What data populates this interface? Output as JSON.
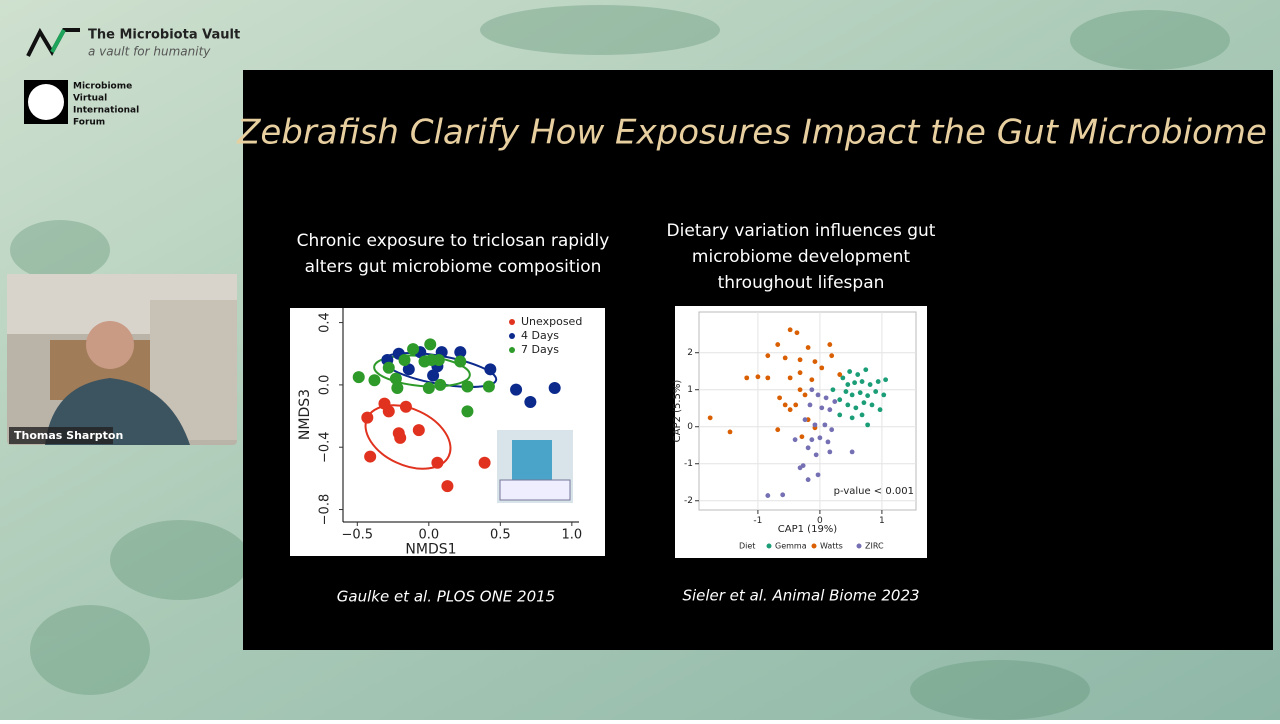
{
  "branding": {
    "name": "The Microbiota Vault",
    "tagline": "a vault for humanity",
    "forum": [
      "Microbiome",
      "Virtual",
      "International",
      "Forum"
    ]
  },
  "speaker": {
    "name": "Thomas Sharpton"
  },
  "slide": {
    "title": "Zebrafish Clarify How Exposures Impact the Gut Microbiome",
    "panels": [
      {
        "caption": [
          "Chronic exposure to triclosan rapidly",
          "alters gut microbiome composition"
        ],
        "citation": "Gaulke et al. PLOS ONE 2015"
      },
      {
        "caption": [
          "Dietary variation influences gut",
          "microbiome development",
          "throughout lifespan"
        ],
        "citation": "Sieler et al. Animal Biome 2023"
      }
    ]
  },
  "chart_data": [
    {
      "type": "scatter",
      "xlabel": "NMDS1",
      "ylabel": "NMDS3",
      "xlim": [
        -0.6,
        1.05
      ],
      "ylim": [
        -0.88,
        0.5
      ],
      "xticks": [
        {
          "value": -0.5,
          "label": "−0.5"
        },
        {
          "value": 0,
          "label": "0.0"
        },
        {
          "value": 0.5,
          "label": "0.5"
        },
        {
          "value": 1,
          "label": "1.0"
        }
      ],
      "yticks": [
        {
          "value": 0.4,
          "label": "0.4"
        },
        {
          "value": 0,
          "label": "0.0"
        },
        {
          "value": -0.4,
          "label": "−0.4"
        },
        {
          "value": -0.8,
          "label": "−0.8"
        }
      ],
      "grid": false,
      "legend": "top-right",
      "series": [
        {
          "name": "Unexposed",
          "color": "#e0321e",
          "x": [
            -0.31,
            -0.16,
            -0.28,
            -0.43,
            -0.07,
            -0.21,
            -0.2,
            -0.41,
            0.06,
            0.39,
            0.13
          ],
          "y": [
            -0.12,
            -0.14,
            -0.17,
            -0.21,
            -0.29,
            -0.31,
            -0.34,
            -0.46,
            -0.5,
            -0.5,
            -0.65
          ]
        },
        {
          "name": "4 Days",
          "color": "#0b2a8c",
          "x": [
            -0.29,
            -0.21,
            -0.06,
            0.09,
            0.22,
            -0.14,
            0.06,
            0.03,
            0.43,
            0.61,
            0.71,
            0.88
          ],
          "y": [
            0.16,
            0.2,
            0.21,
            0.21,
            0.21,
            0.1,
            0.12,
            0.06,
            0.1,
            -0.03,
            -0.11,
            -0.02
          ]
        },
        {
          "name": "7 Days",
          "color": "#2e9a2a",
          "x": [
            -0.49,
            -0.38,
            -0.28,
            -0.17,
            0.01,
            -0.11,
            0.02,
            -0.03,
            0.07,
            0.22,
            -0.23,
            -0.22,
            0,
            0.08,
            0.27,
            0.42,
            0.27
          ],
          "y": [
            0.05,
            0.03,
            0.11,
            0.16,
            0.26,
            0.23,
            0.16,
            0.15,
            0.16,
            0.15,
            0.04,
            -0.02,
            -0.02,
            0,
            -0.01,
            -0.01,
            -0.17
          ]
        }
      ]
    },
    {
      "type": "scatter",
      "xlabel": "CAP1 (19%)",
      "ylabel": "CAP2 (5.5%)",
      "xlim": [
        -1.95,
        1.55
      ],
      "ylim": [
        -2.25,
        3.1
      ],
      "xticks": [
        -1,
        0,
        1
      ],
      "yticks": [
        -2,
        -1,
        0,
        1,
        2
      ],
      "grid": true,
      "legend": "bottom",
      "legend_title": "Diet",
      "annotation": "p-value < 0.001",
      "series": [
        {
          "name": "Gemma",
          "color": "#1b9e77",
          "x": [
            0.37,
            0.48,
            0.61,
            0.74,
            0.45,
            0.56,
            0.68,
            0.81,
            0.94,
            0.42,
            0.52,
            0.65,
            0.77,
            0.9,
            1.03,
            1.06,
            0.32,
            0.45,
            0.58,
            0.71,
            0.84,
            0.97,
            0.68,
            0.52,
            0.32,
            0.77,
            0.21
          ],
          "y": [
            1.32,
            1.49,
            1.41,
            1.54,
            1.14,
            1.19,
            1.22,
            1.14,
            1.22,
            0.95,
            0.86,
            0.92,
            0.84,
            0.95,
            0.86,
            1.27,
            0.73,
            0.59,
            0.51,
            0.65,
            0.59,
            0.46,
            0.32,
            0.24,
            0.32,
            0.05,
            1.0
          ]
        },
        {
          "name": "Watts",
          "color": "#d95f02",
          "x": [
            -0.48,
            -0.37,
            -0.68,
            -0.19,
            0.16,
            -0.84,
            -0.56,
            -0.32,
            -0.08,
            0.19,
            -1.18,
            -1.0,
            -0.84,
            -0.48,
            -0.32,
            -0.13,
            -1.77,
            -1.45,
            -0.65,
            -0.56,
            -0.48,
            -0.32,
            -0.24,
            -0.39,
            -0.19,
            -0.08,
            -0.29,
            -0.68,
            0.32,
            0.03
          ],
          "y": [
            2.62,
            2.54,
            2.22,
            2.14,
            2.22,
            1.92,
            1.86,
            1.81,
            1.76,
            1.92,
            1.32,
            1.35,
            1.32,
            1.32,
            1.46,
            1.27,
            0.24,
            -0.14,
            0.78,
            0.59,
            0.46,
            1.0,
            0.86,
            0.59,
            0.19,
            -0.03,
            -0.27,
            -0.08,
            1.41,
            1.59
          ]
        },
        {
          "name": "ZIRC",
          "color": "#7570b3",
          "x": [
            -0.13,
            -0.03,
            0.1,
            -0.16,
            0.03,
            0.16,
            0.24,
            -0.24,
            -0.08,
            0.08,
            0.19,
            -0.13,
            0,
            0.13,
            -0.19,
            -0.06,
            0.16,
            0.52,
            -0.32,
            -0.03,
            -0.19,
            -0.6,
            -0.84,
            -0.27,
            -0.4
          ],
          "y": [
            1.0,
            0.86,
            0.78,
            0.59,
            0.51,
            0.46,
            0.68,
            0.19,
            0.05,
            0.05,
            -0.08,
            -0.35,
            -0.3,
            -0.41,
            -0.57,
            -0.76,
            -0.68,
            -0.68,
            -1.11,
            -1.3,
            -1.43,
            -1.84,
            -1.86,
            -1.05,
            -0.35
          ]
        }
      ]
    }
  ]
}
